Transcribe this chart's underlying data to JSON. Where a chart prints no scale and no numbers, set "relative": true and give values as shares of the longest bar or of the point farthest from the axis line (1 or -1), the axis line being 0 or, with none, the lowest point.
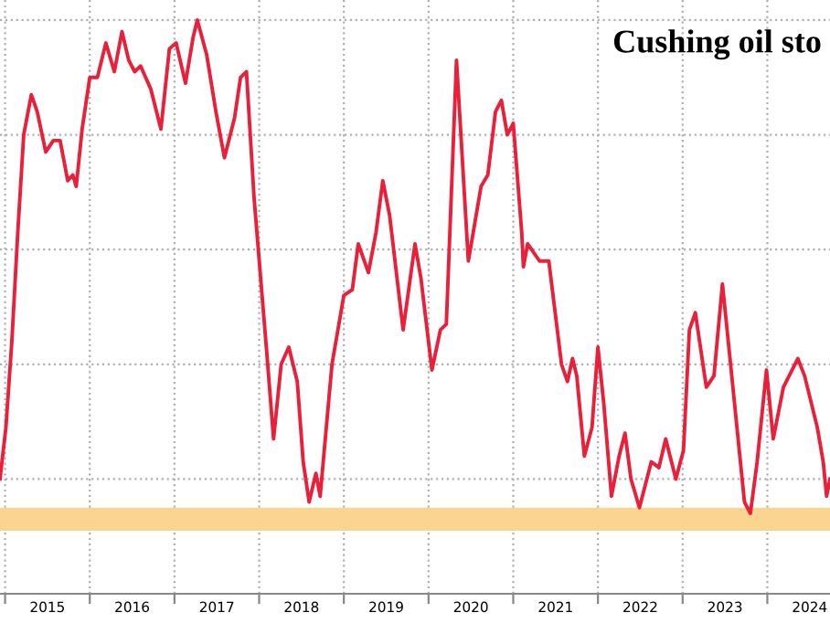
{
  "chart_data": {
    "type": "line",
    "title": "Cushing oil sto",
    "relative": true,
    "grid": true,
    "line_style": "solid",
    "x": [
      2014.94,
      2015.01,
      2015.08,
      2015.15,
      2015.22,
      2015.31,
      2015.38,
      2015.48,
      2015.57,
      2015.65,
      2015.74,
      2015.8,
      2015.84,
      2015.91,
      2016.0,
      2016.09,
      2016.19,
      2016.29,
      2016.38,
      2016.46,
      2016.53,
      2016.6,
      2016.72,
      2016.84,
      2016.94,
      2017.02,
      2017.13,
      2017.22,
      2017.27,
      2017.38,
      2017.49,
      2017.59,
      2017.71,
      2017.78,
      2017.85,
      2017.94,
      2018.09,
      2018.17,
      2018.26,
      2018.35,
      2018.45,
      2018.52,
      2018.59,
      2018.67,
      2018.72,
      2018.86,
      2019.0,
      2019.1,
      2019.17,
      2019.29,
      2019.38,
      2019.46,
      2019.54,
      2019.7,
      2019.84,
      2019.91,
      2020.04,
      2020.14,
      2020.21,
      2020.33,
      2020.47,
      2020.62,
      2020.7,
      2020.79,
      2020.86,
      2020.93,
      2021.0,
      2021.1,
      2021.12,
      2021.17,
      2021.31,
      2021.42,
      2021.57,
      2021.64,
      2021.7,
      2021.75,
      2021.84,
      2021.93,
      2022.0,
      2022.07,
      2022.16,
      2022.25,
      2022.32,
      2022.39,
      2022.49,
      2022.63,
      2022.72,
      2022.8,
      2022.92,
      2023.01,
      2023.08,
      2023.15,
      2023.28,
      2023.37,
      2023.47,
      2023.58,
      2023.73,
      2023.8,
      2023.88,
      2023.99,
      2024.07,
      2024.19,
      2024.36,
      2024.44,
      2024.59,
      2024.66,
      2024.7,
      2024.74
    ],
    "series": [
      {
        "color": "#e8203a",
        "values": [
          0.2,
          0.29,
          0.44,
          0.63,
          0.8,
          0.87,
          0.84,
          0.77,
          0.79,
          0.79,
          0.72,
          0.73,
          0.71,
          0.81,
          0.9,
          0.9,
          0.96,
          0.91,
          0.98,
          0.93,
          0.91,
          0.92,
          0.88,
          0.81,
          0.95,
          0.96,
          0.89,
          0.97,
          1.0,
          0.94,
          0.84,
          0.76,
          0.83,
          0.9,
          0.91,
          0.69,
          0.42,
          0.27,
          0.4,
          0.43,
          0.37,
          0.23,
          0.16,
          0.21,
          0.17,
          0.4,
          0.52,
          0.53,
          0.61,
          0.56,
          0.63,
          0.72,
          0.66,
          0.46,
          0.61,
          0.55,
          0.39,
          0.46,
          0.47,
          0.93,
          0.58,
          0.71,
          0.73,
          0.84,
          0.86,
          0.8,
          0.82,
          0.63,
          0.57,
          0.61,
          0.58,
          0.58,
          0.4,
          0.37,
          0.41,
          0.38,
          0.24,
          0.29,
          0.43,
          0.33,
          0.17,
          0.24,
          0.28,
          0.2,
          0.15,
          0.23,
          0.22,
          0.27,
          0.2,
          0.25,
          0.46,
          0.49,
          0.36,
          0.38,
          0.54,
          0.38,
          0.16,
          0.14,
          0.23,
          0.39,
          0.27,
          0.36,
          0.41,
          0.38,
          0.29,
          0.23,
          0.17,
          0.2
        ]
      }
    ],
    "xlim": [
      2014.94,
      2024.74
    ],
    "xticks": [
      {
        "value": 2015,
        "label": null
      },
      {
        "value": 2015.5,
        "label": "2015"
      },
      {
        "value": 2016,
        "label": null
      },
      {
        "value": 2016.5,
        "label": "2016"
      },
      {
        "value": 2017,
        "label": null
      },
      {
        "value": 2017.5,
        "label": "2017"
      },
      {
        "value": 2018,
        "label": null
      },
      {
        "value": 2018.5,
        "label": "2018"
      },
      {
        "value": 2019,
        "label": null
      },
      {
        "value": 2019.5,
        "label": "2019"
      },
      {
        "value": 2020,
        "label": null
      },
      {
        "value": 2020.5,
        "label": "2020"
      },
      {
        "value": 2021,
        "label": null
      },
      {
        "value": 2021.5,
        "label": "2021"
      },
      {
        "value": 2022,
        "label": null
      },
      {
        "value": 2022.5,
        "label": "2022"
      },
      {
        "value": 2023,
        "label": null
      },
      {
        "value": 2023.5,
        "label": "2023"
      },
      {
        "value": 2024,
        "label": null
      },
      {
        "value": 2024.5,
        "label": "2024"
      }
    ],
    "bands": [
      {
        "axis": "y",
        "from": 0.11,
        "to": 0.15,
        "color": "#fad591"
      }
    ]
  }
}
